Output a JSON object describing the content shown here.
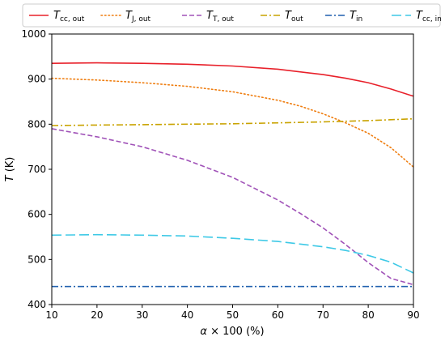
{
  "chart_data": {
    "type": "line",
    "xlabel": "α × 100 (%)",
    "ylabel": "T (K)",
    "xlim": [
      10,
      90
    ],
    "ylim": [
      400,
      1000
    ],
    "xticks": [
      "10",
      "20",
      "30",
      "40",
      "50",
      "60",
      "70",
      "80",
      "90"
    ],
    "yticks": [
      "400",
      "500",
      "600",
      "700",
      "800",
      "900",
      "1000"
    ],
    "grid": false,
    "legend_position": "top",
    "series": [
      {
        "name": "T",
        "sub": "cc, out",
        "color": "#e8202a",
        "dash": "solid",
        "x": [
          10,
          20,
          30,
          40,
          50,
          60,
          70,
          75,
          80,
          85,
          90
        ],
        "y": [
          935,
          936,
          935,
          933,
          929,
          922,
          910,
          902,
          892,
          878,
          862
        ]
      },
      {
        "name": "T",
        "sub": "J, out",
        "color": "#ef7d0f",
        "dash": "dotted",
        "x": [
          10,
          20,
          30,
          40,
          50,
          60,
          65,
          70,
          75,
          80,
          85,
          90
        ],
        "y": [
          902,
          898,
          892,
          884,
          872,
          853,
          840,
          823,
          803,
          780,
          748,
          705
        ]
      },
      {
        "name": "T",
        "sub": "T, out",
        "color": "#a052b8",
        "dash": "dashed",
        "x": [
          10,
          20,
          30,
          40,
          50,
          60,
          65,
          70,
          75,
          80,
          85,
          90
        ],
        "y": [
          790,
          772,
          750,
          720,
          682,
          632,
          602,
          570,
          533,
          493,
          458,
          444
        ]
      },
      {
        "name": "T",
        "sub": "out",
        "color": "#c9a300",
        "dash": "dashdot",
        "x": [
          10,
          20,
          30,
          40,
          50,
          60,
          70,
          80,
          90
        ],
        "y": [
          797,
          798,
          799,
          800,
          801,
          803,
          805,
          808,
          812
        ]
      },
      {
        "name": "T",
        "sub": "in",
        "color": "#1f5fae",
        "dash": "dashdot",
        "x": [
          10,
          90
        ],
        "y": [
          440,
          440
        ]
      },
      {
        "name": "T",
        "sub": "cc, in",
        "color": "#3ec9e6",
        "dash": "longdash",
        "x": [
          10,
          20,
          30,
          40,
          50,
          60,
          70,
          75,
          80,
          85,
          90
        ],
        "y": [
          554,
          555,
          554,
          552,
          547,
          540,
          528,
          520,
          509,
          494,
          470
        ]
      }
    ]
  }
}
